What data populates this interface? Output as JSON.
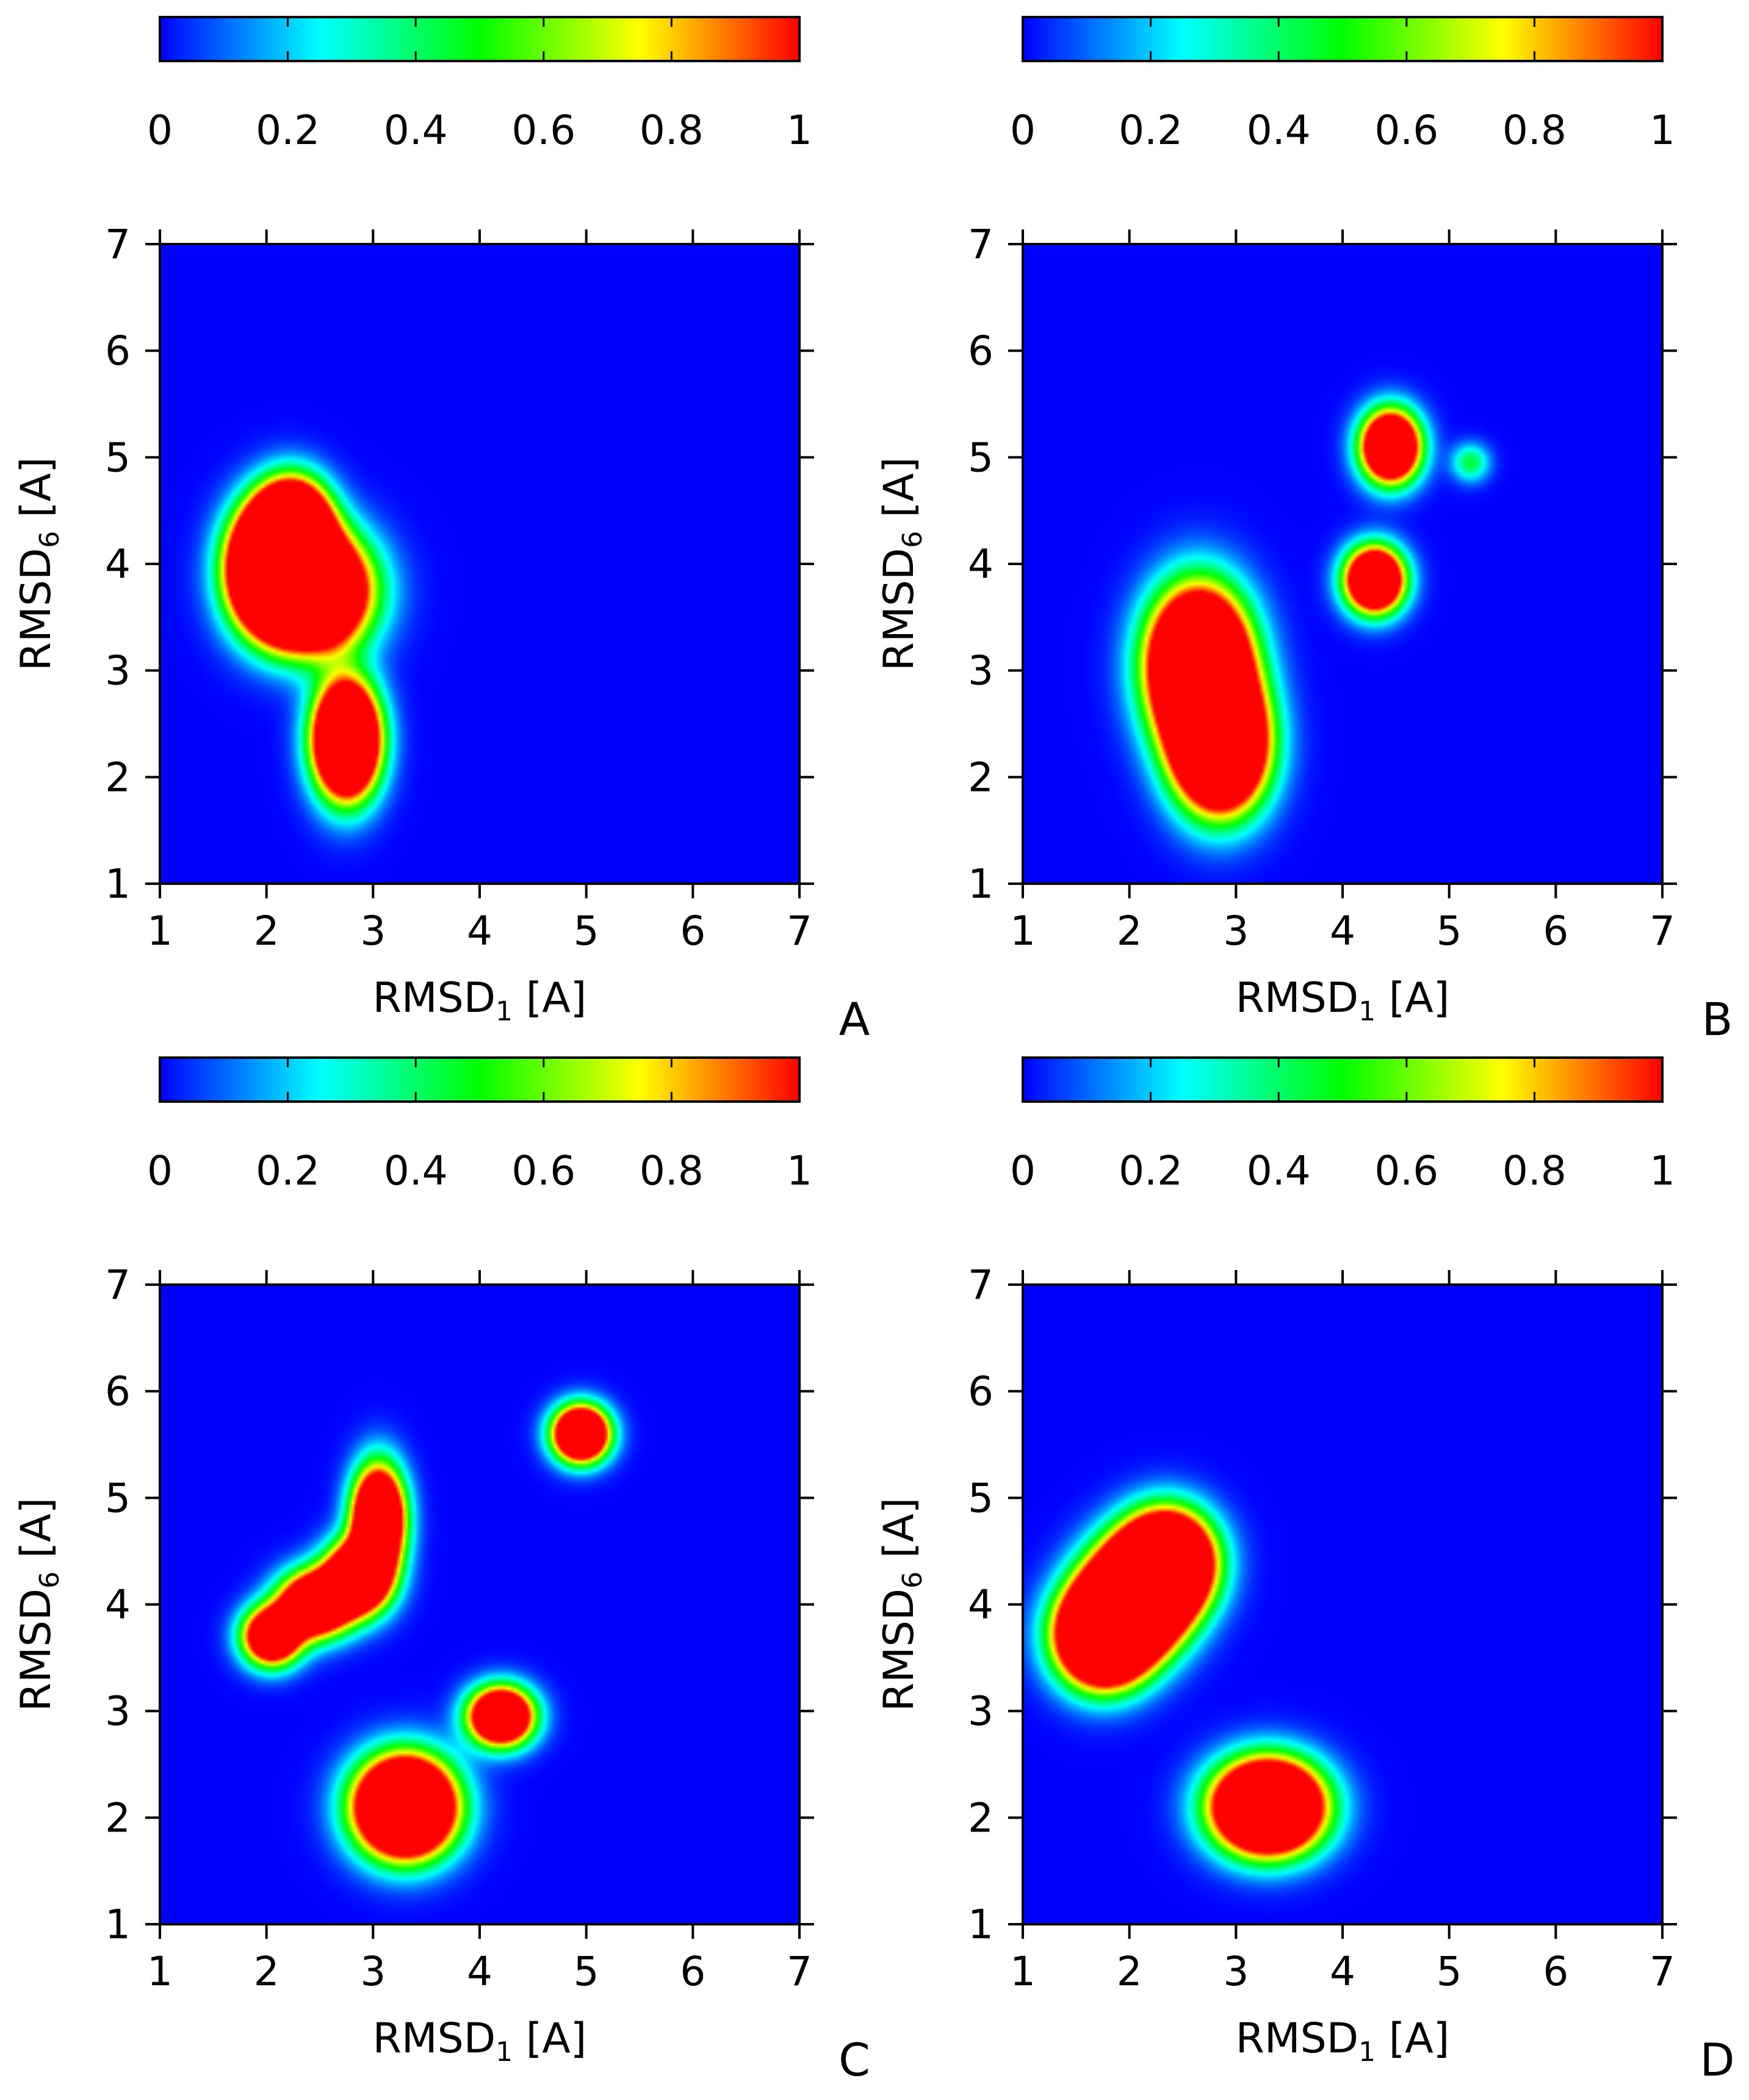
{
  "figure": {
    "colorbar_ticks": [
      "0",
      "0.2",
      "0.4",
      "0.6",
      "0.8",
      "1"
    ],
    "colorbar_values": [
      0,
      0.2,
      0.4,
      0.6,
      0.8,
      1
    ],
    "colormap_stops": [
      {
        "v": 0.0,
        "color": "#0000ff"
      },
      {
        "v": 0.125,
        "color": "#0080ff"
      },
      {
        "v": 0.25,
        "color": "#00ffff"
      },
      {
        "v": 0.5,
        "color": "#00ff00"
      },
      {
        "v": 0.75,
        "color": "#ffff00"
      },
      {
        "v": 0.875,
        "color": "#ff8000"
      },
      {
        "v": 1.0,
        "color": "#ff0000"
      }
    ]
  },
  "chart_data": [
    {
      "type": "heatmap",
      "panel_label": "A",
      "xlabel_main": "RMSD",
      "xlabel_sub": "1",
      "xlabel_unit": " [A]",
      "ylabel_main": "RMSD",
      "ylabel_sub": "6",
      "ylabel_unit": " [A]",
      "xlim": [
        1,
        7
      ],
      "ylim": [
        1,
        7
      ],
      "xticks": [
        "1",
        "2",
        "3",
        "4",
        "5",
        "6",
        "7"
      ],
      "yticks": [
        "1",
        "2",
        "3",
        "4",
        "5",
        "6",
        "7"
      ],
      "colorbar_range": [
        0,
        1
      ],
      "clusters": [
        {
          "x": 2.05,
          "y": 4.0,
          "sx": 0.25,
          "sy": 0.35,
          "amp": 3.0
        },
        {
          "x": 2.4,
          "y": 3.75,
          "sx": 0.35,
          "sy": 0.35,
          "amp": 3.2
        },
        {
          "x": 2.25,
          "y": 4.35,
          "sx": 0.22,
          "sy": 0.28,
          "amp": 2.5
        },
        {
          "x": 2.75,
          "y": 2.35,
          "sx": 0.2,
          "sy": 0.35,
          "amp": 3.0
        }
      ]
    },
    {
      "type": "heatmap",
      "panel_label": "B",
      "xlabel_main": "RMSD",
      "xlabel_sub": "1",
      "xlabel_unit": " [A]",
      "ylabel_main": "RMSD",
      "ylabel_sub": "6",
      "ylabel_unit": " [A]",
      "xlim": [
        1,
        7
      ],
      "ylim": [
        1,
        7
      ],
      "xticks": [
        "1",
        "2",
        "3",
        "4",
        "5",
        "6",
        "7"
      ],
      "yticks": [
        "1",
        "2",
        "3",
        "4",
        "5",
        "6",
        "7"
      ],
      "colorbar_range": [
        0,
        1
      ],
      "clusters": [
        {
          "x": 2.65,
          "y": 3.05,
          "sx": 0.3,
          "sy": 0.45,
          "amp": 3.2
        },
        {
          "x": 2.85,
          "y": 2.3,
          "sx": 0.28,
          "sy": 0.4,
          "amp": 3.0
        },
        {
          "x": 4.3,
          "y": 3.85,
          "sx": 0.18,
          "sy": 0.2,
          "amp": 2.4
        },
        {
          "x": 4.45,
          "y": 5.1,
          "sx": 0.18,
          "sy": 0.22,
          "amp": 2.4
        },
        {
          "x": 5.2,
          "y": 4.95,
          "sx": 0.12,
          "sy": 0.12,
          "amp": 0.45
        }
      ]
    },
    {
      "type": "heatmap",
      "panel_label": "C",
      "xlabel_main": "RMSD",
      "xlabel_sub": "1",
      "xlabel_unit": " [A]",
      "ylabel_main": "RMSD",
      "ylabel_sub": "6",
      "ylabel_unit": " [A]",
      "xlim": [
        1,
        7
      ],
      "ylim": [
        1,
        7
      ],
      "xticks": [
        "1",
        "2",
        "3",
        "4",
        "5",
        "6",
        "7"
      ],
      "yticks": [
        "1",
        "2",
        "3",
        "4",
        "5",
        "6",
        "7"
      ],
      "colorbar_range": [
        0,
        1
      ],
      "clusters": [
        {
          "x": 2.05,
          "y": 3.7,
          "sx": 0.18,
          "sy": 0.18,
          "amp": 2.0
        },
        {
          "x": 2.45,
          "y": 4.0,
          "sx": 0.22,
          "sy": 0.2,
          "amp": 2.2
        },
        {
          "x": 2.85,
          "y": 4.25,
          "sx": 0.2,
          "sy": 0.22,
          "amp": 2.3
        },
        {
          "x": 3.05,
          "y": 4.8,
          "sx": 0.16,
          "sy": 0.32,
          "amp": 2.5
        },
        {
          "x": 3.3,
          "y": 2.1,
          "sx": 0.3,
          "sy": 0.3,
          "amp": 3.2
        },
        {
          "x": 4.2,
          "y": 2.95,
          "sx": 0.2,
          "sy": 0.18,
          "amp": 2.3
        },
        {
          "x": 4.95,
          "y": 5.6,
          "sx": 0.17,
          "sy": 0.17,
          "amp": 2.5
        }
      ]
    },
    {
      "type": "heatmap",
      "panel_label": "D",
      "xlabel_main": "RMSD",
      "xlabel_sub": "1",
      "xlabel_unit": " [A]",
      "ylabel_main": "RMSD",
      "ylabel_sub": "6",
      "ylabel_unit": " [A]",
      "xlim": [
        1,
        7
      ],
      "ylim": [
        1,
        7
      ],
      "xticks": [
        "1",
        "2",
        "3",
        "4",
        "5",
        "6",
        "7"
      ],
      "yticks": [
        "1",
        "2",
        "3",
        "4",
        "5",
        "6",
        "7"
      ],
      "colorbar_range": [
        0,
        1
      ],
      "clusters": [
        {
          "x": 1.75,
          "y": 3.7,
          "sx": 0.28,
          "sy": 0.3,
          "amp": 3.0
        },
        {
          "x": 2.05,
          "y": 4.05,
          "sx": 0.3,
          "sy": 0.32,
          "amp": 3.2
        },
        {
          "x": 2.35,
          "y": 4.4,
          "sx": 0.28,
          "sy": 0.3,
          "amp": 3.0
        },
        {
          "x": 3.3,
          "y": 2.1,
          "sx": 0.33,
          "sy": 0.28,
          "amp": 3.2
        }
      ]
    }
  ]
}
